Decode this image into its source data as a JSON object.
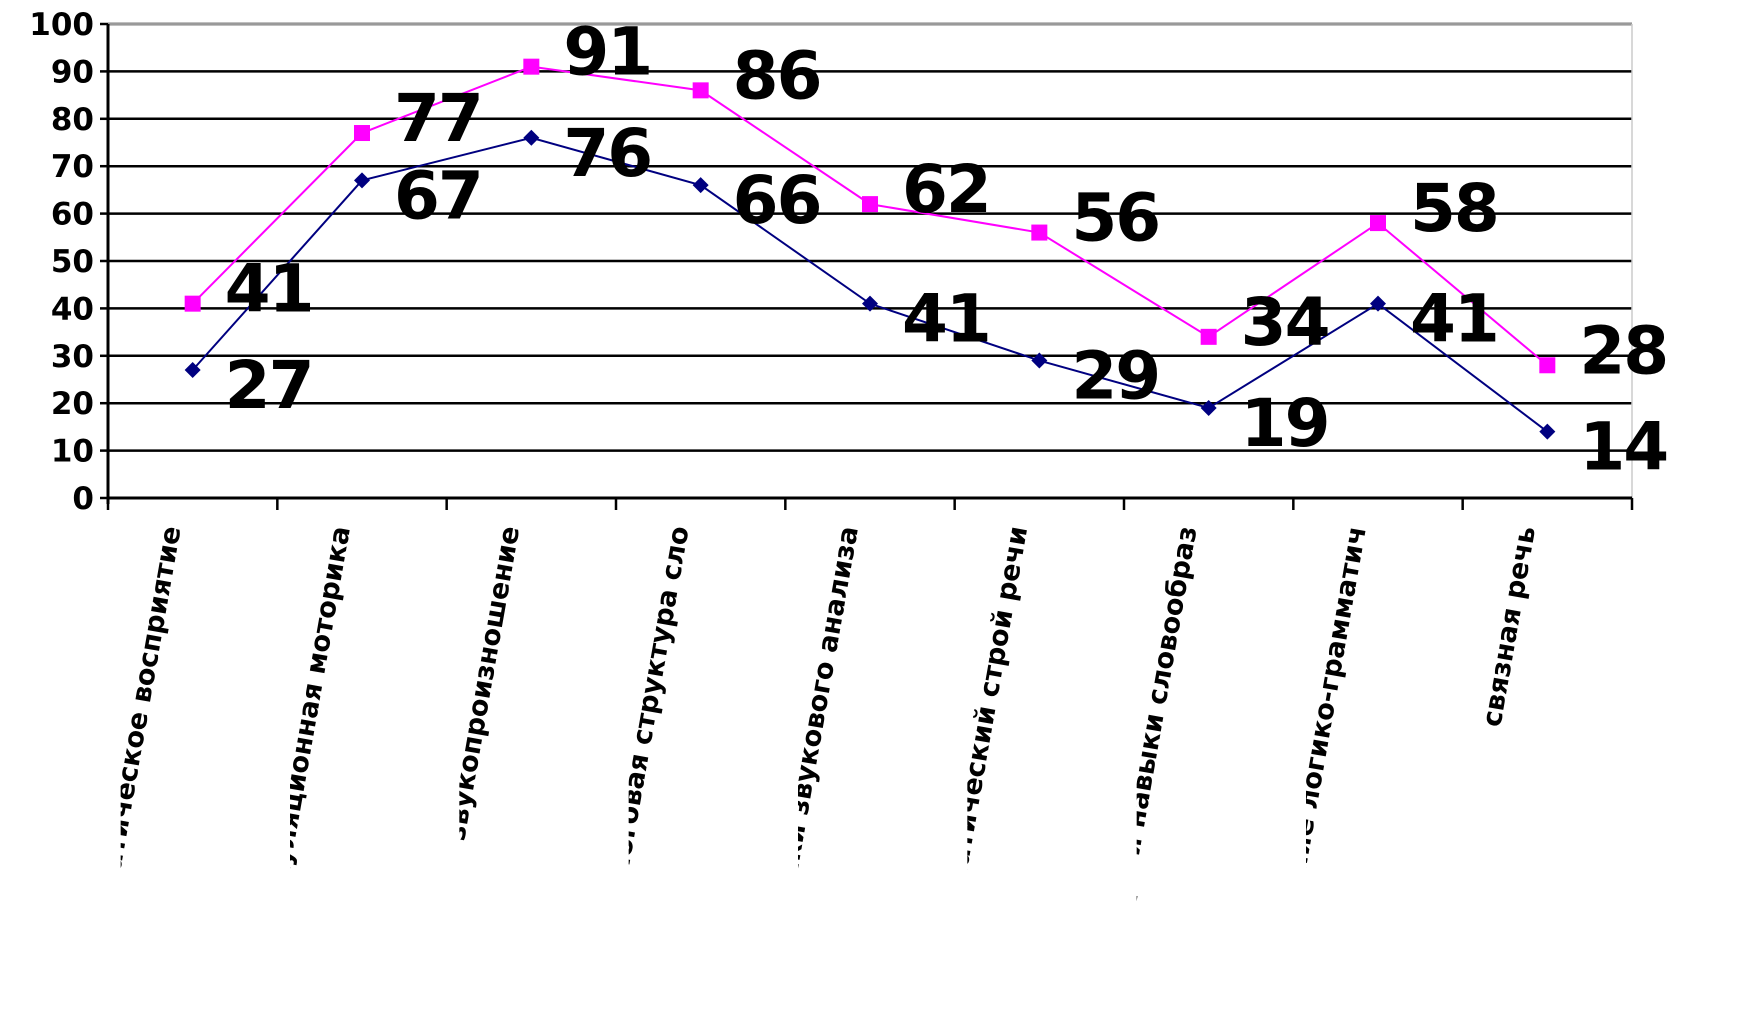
{
  "chart_data": {
    "type": "line",
    "categories": [
      "фонематическое восприятие",
      "артикуляционная моторика",
      "звукопроизношение",
      "звуко-слоговая структура сло",
      "навыки звукового анализа",
      "грамматический строй речи",
      "словарь и навыки словообраз",
      "понимание логико-грамматич",
      "связная речь"
    ],
    "series": [
      {
        "color": "#000080",
        "marker": "diamond",
        "values": [
          27,
          67,
          76,
          66,
          41,
          29,
          19,
          41,
          14
        ]
      },
      {
        "color": "#ff00ff",
        "marker": "square",
        "values": [
          41,
          77,
          91,
          86,
          62,
          56,
          34,
          58,
          28
        ]
      }
    ],
    "yticks": [
      "0",
      "10",
      "20",
      "30",
      "40",
      "50",
      "60",
      "70",
      "80",
      "90",
      "100"
    ],
    "ylim": [
      0,
      100
    ],
    "grid": true,
    "legend": "none",
    "data_labels": true
  }
}
